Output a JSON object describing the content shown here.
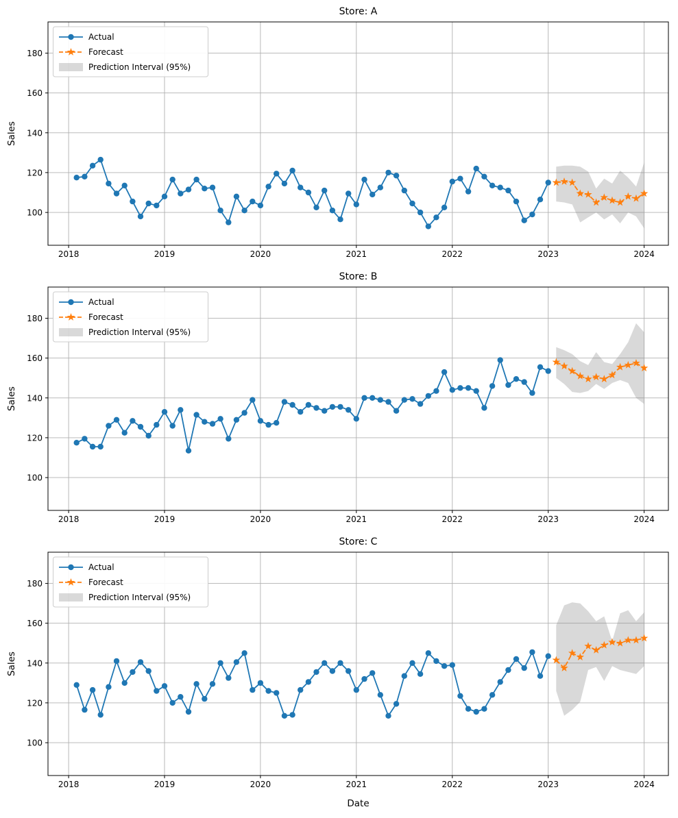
{
  "figure": {
    "background": "#ffffff"
  },
  "style": {
    "actual_color": "#1f77b4",
    "forecast_color": "#ff7f0e",
    "band_fill": "#808080",
    "band_opacity": 0.3,
    "grid_color": "#b0b0b0",
    "spine_color": "#000000",
    "text_color": "#000000",
    "legend_border": "#cccccc",
    "legend_bg": "#ffffff"
  },
  "legend": {
    "position": "upper left",
    "items": [
      "Actual",
      "Forecast",
      "Prediction Interval (95%)"
    ]
  },
  "axes": {
    "ylabel": "Sales",
    "xlabel": "Date",
    "y_ticks": [
      100,
      120,
      140,
      160,
      180
    ],
    "x_ticks": [
      2018,
      2019,
      2020,
      2021,
      2022,
      2023,
      2024
    ],
    "ylim": [
      83.5,
      195.7
    ],
    "xlim_years": [
      2017.785,
      2024.253
    ],
    "grid": true
  },
  "chart_data": [
    {
      "type": "line",
      "title": "Store: A",
      "actual": {
        "name": "Actual",
        "start": "2018-01",
        "freq": "monthly",
        "values": [
          117.5,
          118,
          123.5,
          126.5,
          114.5,
          109.5,
          113.5,
          105.5,
          98,
          104.5,
          103.5,
          108,
          116.5,
          109.5,
          111.5,
          116.5,
          112,
          112.5,
          101,
          95,
          108,
          101,
          105.5,
          103.5,
          113,
          119.5,
          114.5,
          121,
          112.5,
          110,
          102.5,
          111,
          101,
          96.5,
          109.5,
          104,
          116.5,
          109,
          112.5,
          120,
          118.5,
          111,
          104.5,
          100,
          93,
          97.5,
          102.5,
          115.5,
          117,
          110.5,
          122,
          118,
          113.5,
          112.5,
          111,
          105.5,
          96,
          99,
          106.5,
          115
        ]
      },
      "forecast": {
        "name": "Forecast",
        "start": "2023-01",
        "freq": "monthly",
        "values": [
          115,
          115.5,
          115,
          109.5,
          109,
          105,
          107.5,
          106,
          105,
          108,
          107,
          109.5
        ]
      },
      "prediction_interval": {
        "name": "Prediction Interval (95%)",
        "level": "95%",
        "start": "2023-01",
        "upper": [
          123,
          123.5,
          123.5,
          123,
          120.5,
          112,
          117,
          114.5,
          121,
          117.5,
          113,
          125
        ],
        "lower": [
          105.5,
          105,
          104,
          95,
          97.5,
          100,
          96.5,
          99,
          94.5,
          100,
          98,
          92
        ]
      }
    },
    {
      "type": "line",
      "title": "Store: B",
      "actual": {
        "name": "Actual",
        "start": "2018-01",
        "freq": "monthly",
        "values": [
          117.5,
          119.5,
          115.5,
          115.5,
          126,
          129,
          122.5,
          128.5,
          125.5,
          121,
          126.5,
          133,
          126,
          134,
          113.5,
          131.5,
          128,
          127,
          129.5,
          119.5,
          129,
          132.5,
          139,
          128.5,
          126.5,
          127.5,
          138,
          136.5,
          133,
          136.5,
          135,
          133.5,
          135.5,
          135.5,
          134,
          129.5,
          140,
          140,
          139,
          138,
          133.5,
          139,
          139.5,
          137,
          141,
          143.5,
          153,
          144,
          145,
          145,
          143.5,
          135,
          146,
          159,
          146.5,
          149.5,
          148,
          142.5,
          155.5,
          153.5
        ]
      },
      "forecast": {
        "name": "Forecast",
        "start": "2023-01",
        "freq": "monthly",
        "values": [
          158,
          156,
          153.5,
          151,
          149.5,
          150.5,
          149.5,
          151.5,
          155.5,
          156.5,
          157.5,
          155
        ]
      },
      "prediction_interval": {
        "name": "Prediction Interval (95%)",
        "level": "95%",
        "start": "2023-01",
        "upper": [
          165.5,
          164,
          162,
          158.5,
          156.5,
          163,
          158,
          157,
          162,
          168,
          177.5,
          173
        ],
        "lower": [
          150,
          147,
          143,
          142.5,
          143.5,
          147,
          144.5,
          147.5,
          149,
          147.5,
          140,
          137
        ]
      }
    },
    {
      "type": "line",
      "title": "Store: C",
      "actual": {
        "name": "Actual",
        "start": "2018-01",
        "freq": "monthly",
        "values": [
          129,
          116.5,
          126.5,
          114,
          128,
          141,
          130,
          135.5,
          140.5,
          136,
          126,
          128.5,
          120,
          123,
          115.5,
          129.5,
          122,
          129.5,
          140,
          132.5,
          140.5,
          145,
          126.5,
          130,
          126,
          125,
          113.5,
          114,
          126.5,
          130.5,
          135.5,
          140,
          136,
          140,
          136,
          126.5,
          132,
          135,
          124,
          113.5,
          119.5,
          133.5,
          140,
          134.5,
          145,
          141,
          138.5,
          139,
          123.5,
          117,
          115.5,
          117,
          124,
          130.5,
          136.5,
          142,
          137.5,
          145.5,
          133.5,
          143.5
        ]
      },
      "forecast": {
        "name": "Forecast",
        "start": "2023-01",
        "freq": "monthly",
        "values": [
          141.5,
          137.5,
          145,
          143,
          148.5,
          146.5,
          149,
          150.5,
          150,
          151.5,
          151.5,
          152.5
        ]
      },
      "prediction_interval": {
        "name": "Prediction Interval (95%)",
        "level": "95%",
        "start": "2023-01",
        "upper": [
          159,
          169,
          170.5,
          170,
          166,
          161,
          163.5,
          151,
          165,
          166.5,
          161,
          165.5
        ],
        "lower": [
          126,
          113.5,
          116.5,
          120.5,
          136.5,
          138,
          131,
          138.5,
          136.5,
          135.5,
          134.5,
          138.5
        ]
      }
    }
  ]
}
